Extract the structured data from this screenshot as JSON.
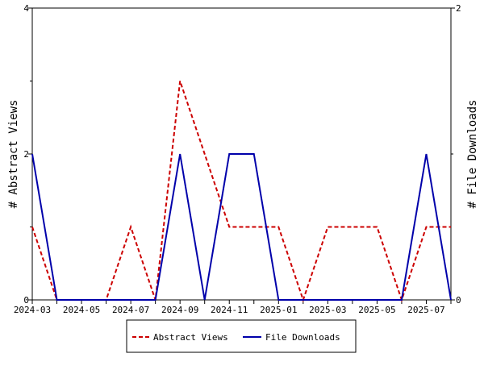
{
  "chart_data": {
    "type": "line",
    "title": "",
    "xlabel": "",
    "ylabel": "# Abstract Views",
    "y2label": "# File Downloads",
    "x": [
      "2024-03",
      "2024-04",
      "2024-05",
      "2024-06",
      "2024-07",
      "2024-08",
      "2024-09",
      "2024-10",
      "2024-11",
      "2024-12",
      "2025-01",
      "2025-02",
      "2025-03",
      "2025-04",
      "2025-05",
      "2025-06",
      "2025-07",
      "2025-08"
    ],
    "x_ticks": [
      "2024-03",
      "2024-05",
      "2024-07",
      "2024-09",
      "2024-11",
      "2025-01",
      "2025-03",
      "2025-05",
      "2025-07"
    ],
    "ylim": [
      0,
      4
    ],
    "y_ticks": [
      "0",
      "2",
      "4"
    ],
    "y2lim": [
      0,
      2
    ],
    "y2_ticks": [
      "0",
      "2"
    ],
    "grid": false,
    "legend_position": "bottom-center",
    "series": [
      {
        "name": "Abstract Views",
        "axis": "left",
        "color": "#cc0000",
        "style": "dashed",
        "values": [
          1,
          0,
          0,
          0,
          1,
          0,
          3,
          2,
          1,
          1,
          1,
          0,
          1,
          1,
          1,
          0,
          1,
          1
        ]
      },
      {
        "name": "File Downloads",
        "axis": "right",
        "color": "#0000aa",
        "style": "solid",
        "values": [
          1,
          0,
          0,
          0,
          0,
          0,
          1,
          0,
          1,
          1,
          0,
          0,
          0,
          0,
          0,
          0,
          1,
          0
        ]
      }
    ]
  }
}
